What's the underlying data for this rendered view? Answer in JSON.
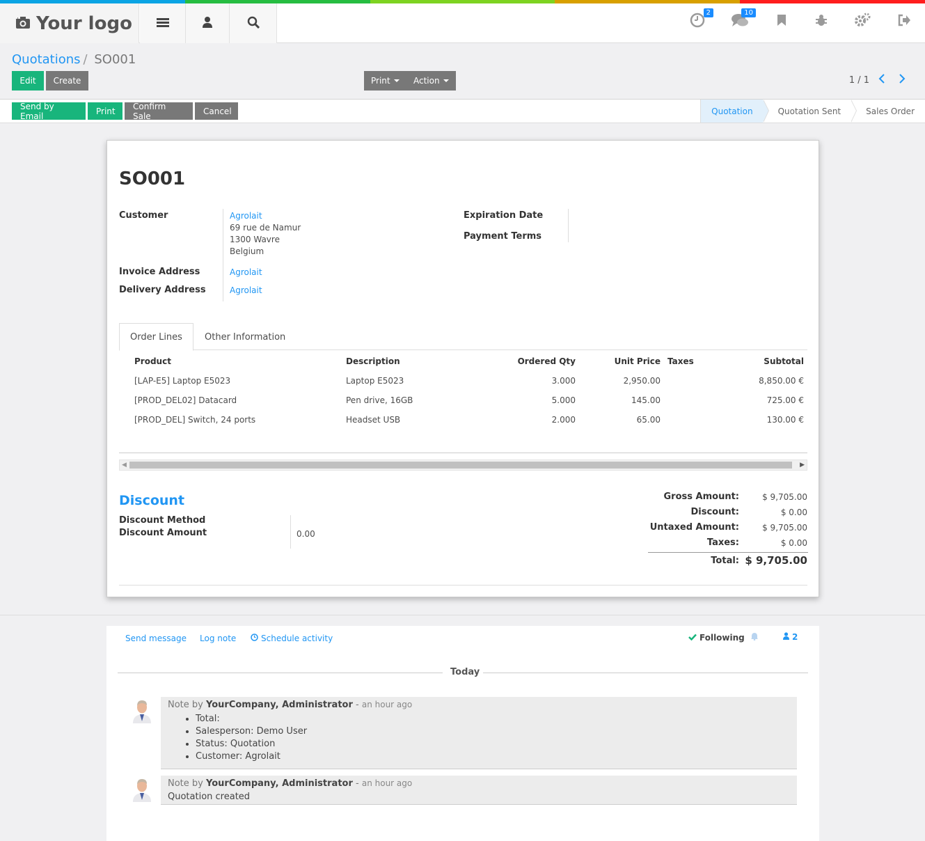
{
  "colors": {
    "strip": [
      "#0ba4e4",
      "#26bd41",
      "#7ed321",
      "#d8a000",
      "#ff1d1d"
    ],
    "accent": "#2196f3",
    "primary_btn": "#18b57c",
    "secondary_btn": "#787878"
  },
  "topbar": {
    "logo_text": "Your logo",
    "icons": [
      "camera-icon",
      "menu-icon",
      "user-icon",
      "search-icon"
    ],
    "systray": {
      "activity_badge": "2",
      "messages_badge": "10"
    }
  },
  "breadcrumb": {
    "parent": "Quotations",
    "separator": "/",
    "current": "SO001"
  },
  "buttons": {
    "edit": "Edit",
    "create": "Create",
    "print_menu": "Print",
    "action_menu": "Action"
  },
  "pager": {
    "value": "1 / 1"
  },
  "header_buttons": {
    "send_email": "Send by Email",
    "print": "Print",
    "confirm_sale": "Confirm Sale",
    "cancel": "Cancel"
  },
  "stages": [
    "Quotation",
    "Quotation Sent",
    "Sales Order"
  ],
  "form": {
    "title": "SO001",
    "customer_label": "Customer",
    "customer_name": "Agrolait",
    "customer_addr1": "69 rue de Namur",
    "customer_addr2": "1300 Wavre",
    "customer_addr3": "Belgium",
    "invoice_label": "Invoice Address",
    "invoice_value": "Agrolait",
    "delivery_label": "Delivery Address",
    "delivery_value": "Agrolait",
    "expiration_label": "Expiration Date",
    "payment_terms_label": "Payment Terms"
  },
  "tabs": {
    "order_lines": "Order Lines",
    "other_info": "Other Information"
  },
  "order_lines": {
    "headers": {
      "product": "Product",
      "description": "Description",
      "qty": "Ordered Qty",
      "price": "Unit Price",
      "taxes": "Taxes",
      "subtotal": "Subtotal"
    },
    "rows": [
      {
        "product": "[LAP-E5] Laptop E5023",
        "description": "Laptop E5023",
        "qty": "3.000",
        "price": "2,950.00",
        "taxes": "",
        "subtotal": "8,850.00 €"
      },
      {
        "product": "[PROD_DEL02] Datacard",
        "description": "Pen drive, 16GB",
        "qty": "5.000",
        "price": "145.00",
        "taxes": "",
        "subtotal": "725.00 €"
      },
      {
        "product": "[PROD_DEL] Switch, 24 ports",
        "description": "Headset USB",
        "qty": "2.000",
        "price": "65.00",
        "taxes": "",
        "subtotal": "130.00 €"
      }
    ]
  },
  "discount": {
    "title": "Discount",
    "method_label": "Discount Method",
    "amount_label": "Discount Amount",
    "amount_value": "0.00"
  },
  "totals": {
    "gross_label": "Gross Amount:",
    "gross_value": "$ 9,705.00",
    "discount_label": "Discount:",
    "discount_value": "$ 0.00",
    "untaxed_label": "Untaxed Amount:",
    "untaxed_value": "$ 9,705.00",
    "taxes_label": "Taxes:",
    "taxes_value": "$ 0.00",
    "total_label": "Total:",
    "total_value": "$ 9,705.00"
  },
  "chatter": {
    "send_message": "Send message",
    "log_note": "Log note",
    "schedule_activity": "Schedule activity",
    "following": "Following",
    "followers_count": "2",
    "today": "Today",
    "messages": [
      {
        "prefix": "Note by",
        "author": "YourCompany, Administrator",
        "dash": "-",
        "time": "an hour ago",
        "items": [
          "Total:",
          "Salesperson: Demo User",
          "Status: Quotation",
          "Customer: Agrolait"
        ]
      },
      {
        "prefix": "Note by",
        "author": "YourCompany, Administrator",
        "dash": "-",
        "time": "an hour ago",
        "body": "Quotation created"
      }
    ]
  }
}
